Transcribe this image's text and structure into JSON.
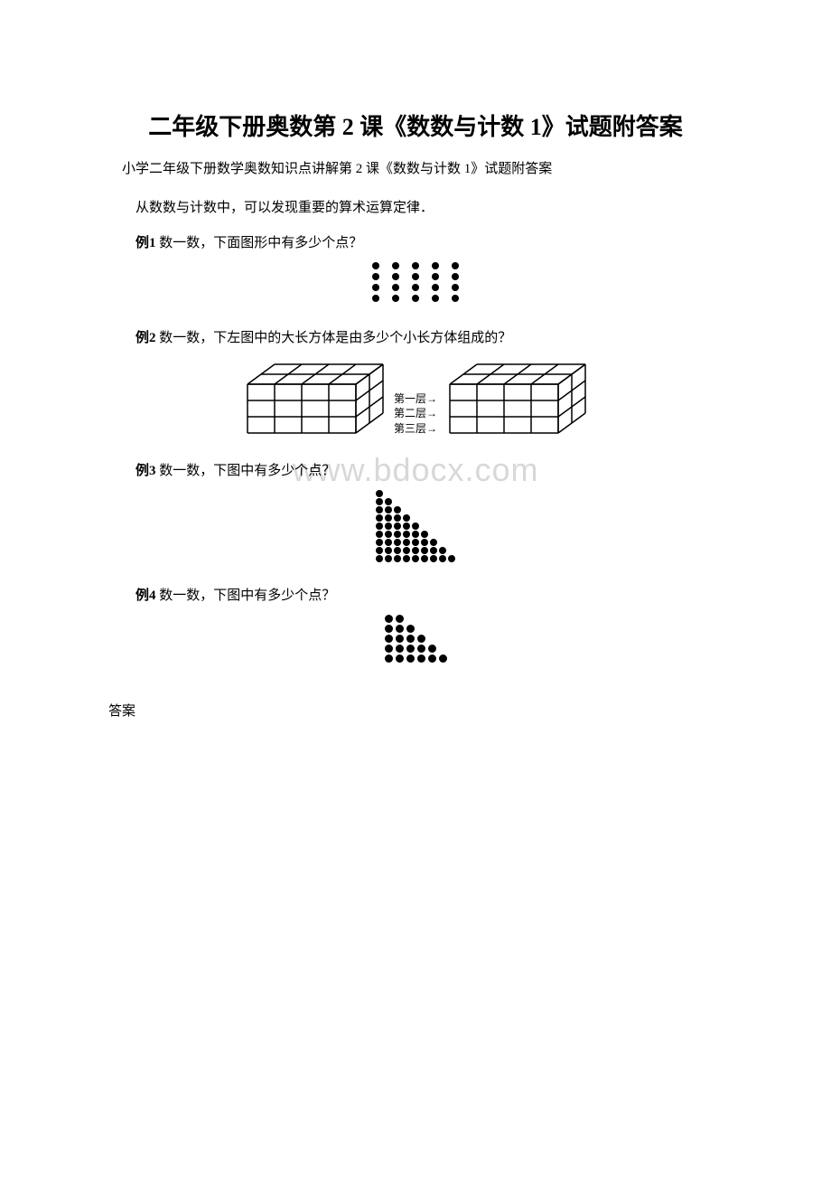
{
  "title": "二年级下册奥数第 2 课《数数与计数 1》试题附答案",
  "subtitle": "小学二年级下册数学奥数知识点讲解第 2 课《数数与计数 1》试题附答案",
  "intro": "从数数与计数中，可以发现重要的算术运算定律．",
  "examples": {
    "ex1": {
      "label": "例1",
      "text": "数一数，下面图形中有多少个点？"
    },
    "ex2": {
      "label": "例2",
      "text": "数一数，下左图中的大长方体是由多少个小长方体组成的？"
    },
    "ex3": {
      "label": "例3",
      "text": "数一数，下图中有多少个点？"
    },
    "ex4": {
      "label": "例4",
      "text": "数一数，下图中有多少个点？"
    }
  },
  "figures": {
    "ex1_grid": {
      "rows": 4,
      "cols": 5,
      "dot_size": 8,
      "gap": 14,
      "color": "#000000"
    },
    "ex2_cuboid": {
      "cols": 4,
      "rows": 3,
      "depth": 2,
      "layer_labels": [
        "第一层→",
        "第二层→",
        "第三层→"
      ],
      "stroke": "#000000",
      "stroke_width": 1.5
    },
    "ex3_triangle": {
      "rows": 9,
      "start": 1,
      "step": 1,
      "dot_size": 8,
      "gap": 2,
      "color": "#000000"
    },
    "ex4_trapezoid": {
      "rows": 5,
      "start": 2,
      "step": 1,
      "dot_size": 9,
      "gap": 3,
      "color": "#000000"
    }
  },
  "watermark": "www.bdocx.com",
  "answer_label": "答案",
  "colors": {
    "text": "#000000",
    "background": "#ffffff",
    "watermark": "#d8d8d8"
  }
}
